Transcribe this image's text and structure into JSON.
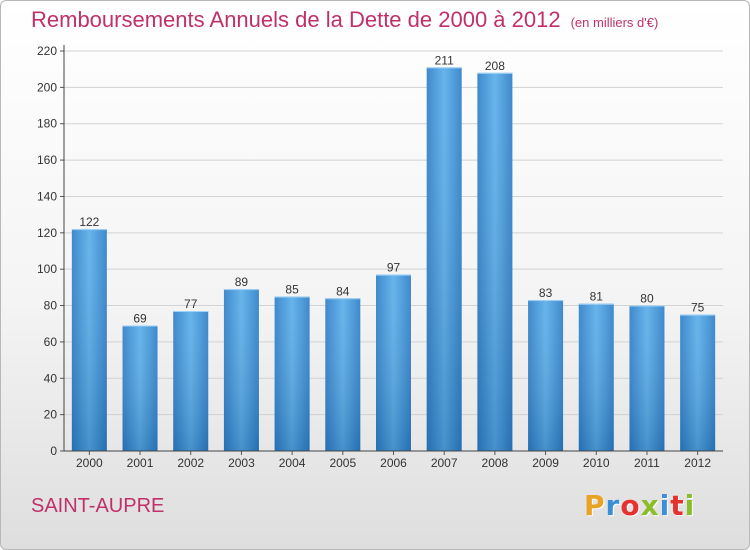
{
  "chart_data": {
    "type": "bar",
    "title": "Remboursements Annuels de la Dette de 2000 à 2012",
    "subtitle": "(en milliers d'€)",
    "categories": [
      "2000",
      "2001",
      "2002",
      "2003",
      "2004",
      "2005",
      "2006",
      "2007",
      "2008",
      "2009",
      "2010",
      "2011",
      "2012"
    ],
    "values": [
      122,
      69,
      77,
      89,
      85,
      84,
      97,
      211,
      208,
      83,
      81,
      80,
      75
    ],
    "ylim": [
      0,
      220
    ],
    "yticks": [
      0,
      20,
      40,
      60,
      80,
      100,
      120,
      140,
      160,
      180,
      200,
      220
    ],
    "grid": true,
    "bar_color": "#3c93d8"
  },
  "footer": {
    "city": "SAINT-AUPRE",
    "logo": [
      "P",
      "r",
      "o",
      "x",
      "i",
      "t",
      "i"
    ],
    "logo_colors": [
      "#e8a322",
      "#3a8fd8",
      "#e6322f",
      "#8bbd2a",
      "#3a8fd8",
      "#e6322f",
      "#8bbd2a"
    ]
  }
}
